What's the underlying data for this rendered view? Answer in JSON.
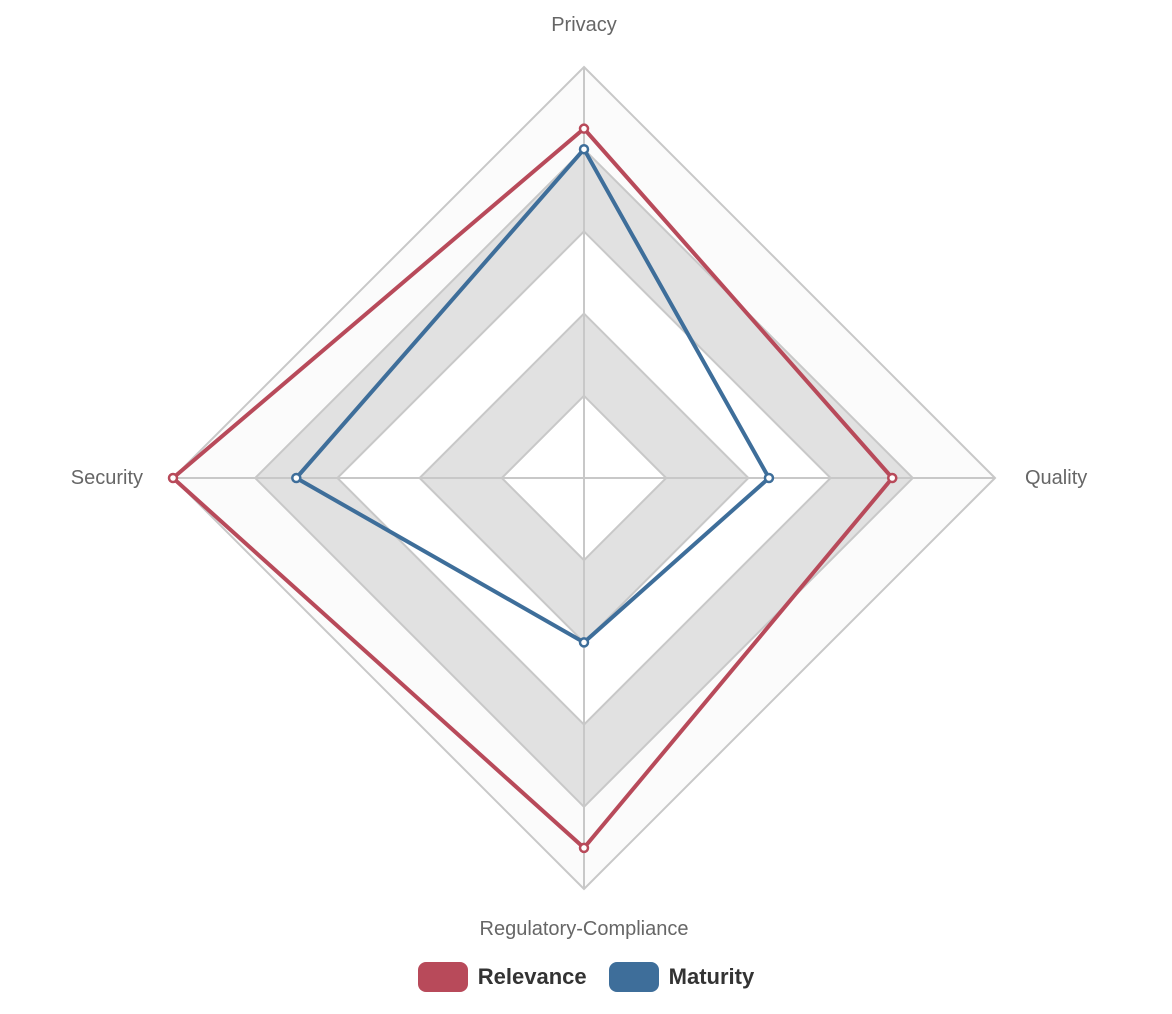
{
  "chart_data": {
    "type": "radar",
    "axes": [
      "Privacy",
      "Quality",
      "Regulatory-Compliance",
      "Security"
    ],
    "r_range": [
      0,
      5
    ],
    "rings": 5,
    "series": [
      {
        "name": "Relevance",
        "values": [
          4.25,
          3.75,
          4.5,
          5.0
        ],
        "color": "#b84a5a"
      },
      {
        "name": "Maturity",
        "values": [
          4.0,
          2.25,
          2.0,
          3.5
        ],
        "color": "#3e6e9a"
      }
    ],
    "grid": true,
    "legend_position": "bottom"
  }
}
